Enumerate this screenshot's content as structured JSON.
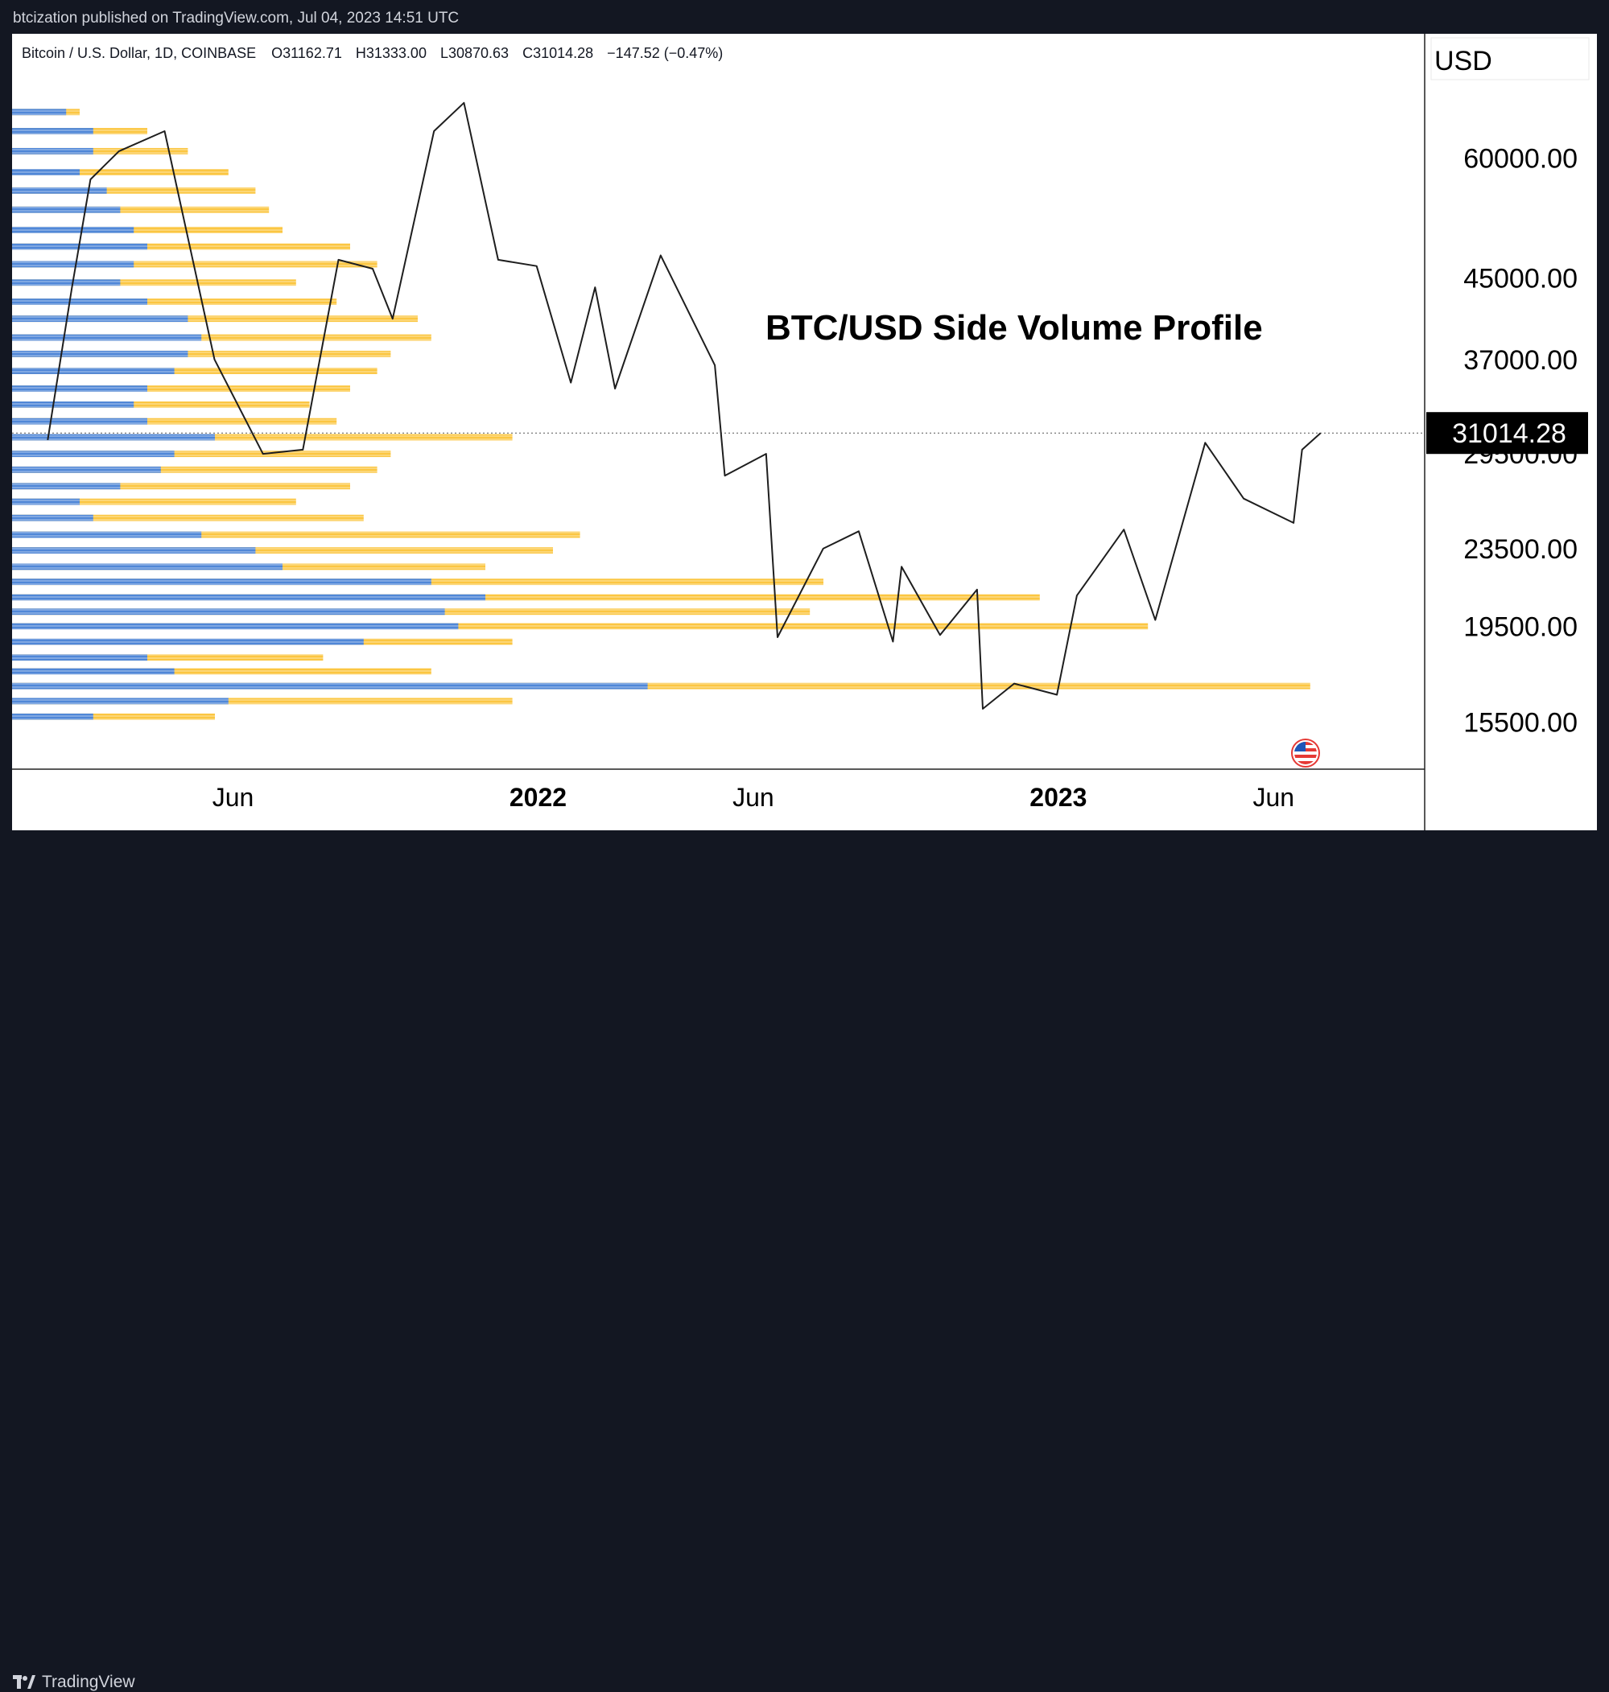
{
  "header": {
    "publisher_line": "btcization published on TradingView.com, Jul 04, 2023 14:51 UTC"
  },
  "symbol_line": {
    "name": "Bitcoin / U.S. Dollar, 1D, COINBASE",
    "open": "O31162.71",
    "high": "H31333.00",
    "low": "L30870.63",
    "close": "C31014.28",
    "change": "−147.52 (−0.47%)"
  },
  "footer": {
    "brand": "TradingView"
  },
  "colors": {
    "bg_dark": "#131722",
    "panel": "#ffffff",
    "price_line": "#1e1e1e",
    "vol_up": "#fbc02d",
    "vol_down": "#3d7fe8",
    "last_price_bg": "#000000"
  },
  "chart_data": {
    "type": "line",
    "title": "BTC/USD Side Volume Profile",
    "currency_label": "USD",
    "ylim": [
      14500,
      72000
    ],
    "y_scale": "log",
    "y_ticks": [
      {
        "value": 60000,
        "label": "60000.00"
      },
      {
        "value": 45000,
        "label": "45000.00"
      },
      {
        "value": 37000,
        "label": "37000.00"
      },
      {
        "value": 29500,
        "label": "29500.00"
      },
      {
        "value": 23500,
        "label": "23500.00"
      },
      {
        "value": 19500,
        "label": "19500.00"
      },
      {
        "value": 15500,
        "label": "15500.00"
      }
    ],
    "last_price": {
      "value": 31014.28,
      "label": "31014.28"
    },
    "x_ticks": [
      {
        "date": "2021-06-01",
        "label": "Jun",
        "bold": false
      },
      {
        "date": "2022-01-01",
        "label": "2022",
        "bold": true
      },
      {
        "date": "2022-06-01",
        "label": "Jun",
        "bold": false
      },
      {
        "date": "2023-01-01",
        "label": "2023",
        "bold": true
      },
      {
        "date": "2023-06-01",
        "label": "Jun",
        "bold": false
      }
    ],
    "x": [
      "2021-01-22",
      "2021-02-08",
      "2021-02-21",
      "2021-03-13",
      "2021-04-14",
      "2021-05-19",
      "2021-06-22",
      "2021-07-20",
      "2021-08-14",
      "2021-09-07",
      "2021-09-21",
      "2021-10-20",
      "2021-11-10",
      "2021-12-04",
      "2021-12-31",
      "2022-01-24",
      "2022-02-10",
      "2022-02-24",
      "2022-03-28",
      "2022-05-05",
      "2022-05-12",
      "2022-06-10",
      "2022-06-18",
      "2022-07-20",
      "2022-08-14",
      "2022-09-07",
      "2022-09-13",
      "2022-10-10",
      "2022-11-05",
      "2022-11-09",
      "2022-12-01",
      "2022-12-31",
      "2023-01-14",
      "2023-02-16",
      "2023-03-10",
      "2023-04-14",
      "2023-05-11",
      "2023-06-15",
      "2023-06-21",
      "2023-07-04"
    ],
    "series": [
      {
        "values": [
          30500,
          44000,
          57000,
          61000,
          64000,
          37000,
          29500,
          29800,
          47000,
          46000,
          40800,
          64000,
          68500,
          47000,
          46300,
          35000,
          44000,
          34500,
          47500,
          36500,
          28000,
          29500,
          19000,
          23500,
          24500,
          18800,
          22500,
          19100,
          21300,
          16000,
          17000,
          16550,
          21000,
          24600,
          19800,
          30300,
          26500,
          25000,
          29800,
          31014
        ]
      }
    ],
    "volume_profile": {
      "up_color": "#fbc02d",
      "down_color": "#3d7fe8",
      "rows": [
        {
          "price": 67000,
          "total": 0.05,
          "down": 0.04
        },
        {
          "price": 64000,
          "total": 0.1,
          "down": 0.06
        },
        {
          "price": 61000,
          "total": 0.13,
          "down": 0.06
        },
        {
          "price": 58000,
          "total": 0.16,
          "down": 0.05
        },
        {
          "price": 55500,
          "total": 0.18,
          "down": 0.07
        },
        {
          "price": 53000,
          "total": 0.19,
          "down": 0.08
        },
        {
          "price": 50500,
          "total": 0.2,
          "down": 0.09
        },
        {
          "price": 48500,
          "total": 0.25,
          "down": 0.1
        },
        {
          "price": 46500,
          "total": 0.27,
          "down": 0.09
        },
        {
          "price": 44500,
          "total": 0.21,
          "down": 0.08
        },
        {
          "price": 42500,
          "total": 0.24,
          "down": 0.1
        },
        {
          "price": 40800,
          "total": 0.3,
          "down": 0.13
        },
        {
          "price": 39000,
          "total": 0.31,
          "down": 0.14
        },
        {
          "price": 37500,
          "total": 0.28,
          "down": 0.13
        },
        {
          "price": 36000,
          "total": 0.27,
          "down": 0.12
        },
        {
          "price": 34500,
          "total": 0.25,
          "down": 0.1
        },
        {
          "price": 33200,
          "total": 0.22,
          "down": 0.09
        },
        {
          "price": 31900,
          "total": 0.24,
          "down": 0.1
        },
        {
          "price": 30700,
          "total": 0.37,
          "down": 0.15
        },
        {
          "price": 29500,
          "total": 0.28,
          "down": 0.12
        },
        {
          "price": 28400,
          "total": 0.27,
          "down": 0.11
        },
        {
          "price": 27300,
          "total": 0.25,
          "down": 0.08
        },
        {
          "price": 26300,
          "total": 0.21,
          "down": 0.05
        },
        {
          "price": 25300,
          "total": 0.26,
          "down": 0.06
        },
        {
          "price": 24300,
          "total": 0.42,
          "down": 0.14
        },
        {
          "price": 23400,
          "total": 0.4,
          "down": 0.18
        },
        {
          "price": 22500,
          "total": 0.35,
          "down": 0.2
        },
        {
          "price": 21700,
          "total": 0.6,
          "down": 0.31
        },
        {
          "price": 20900,
          "total": 0.76,
          "down": 0.35
        },
        {
          "price": 20200,
          "total": 0.59,
          "down": 0.32
        },
        {
          "price": 19500,
          "total": 0.84,
          "down": 0.33
        },
        {
          "price": 18800,
          "total": 0.37,
          "down": 0.26
        },
        {
          "price": 18100,
          "total": 0.23,
          "down": 0.1
        },
        {
          "price": 17500,
          "total": 0.31,
          "down": 0.12
        },
        {
          "price": 16900,
          "total": 0.96,
          "down": 0.47
        },
        {
          "price": 16300,
          "total": 0.37,
          "down": 0.16
        },
        {
          "price": 15700,
          "total": 0.15,
          "down": 0.06
        }
      ]
    }
  }
}
